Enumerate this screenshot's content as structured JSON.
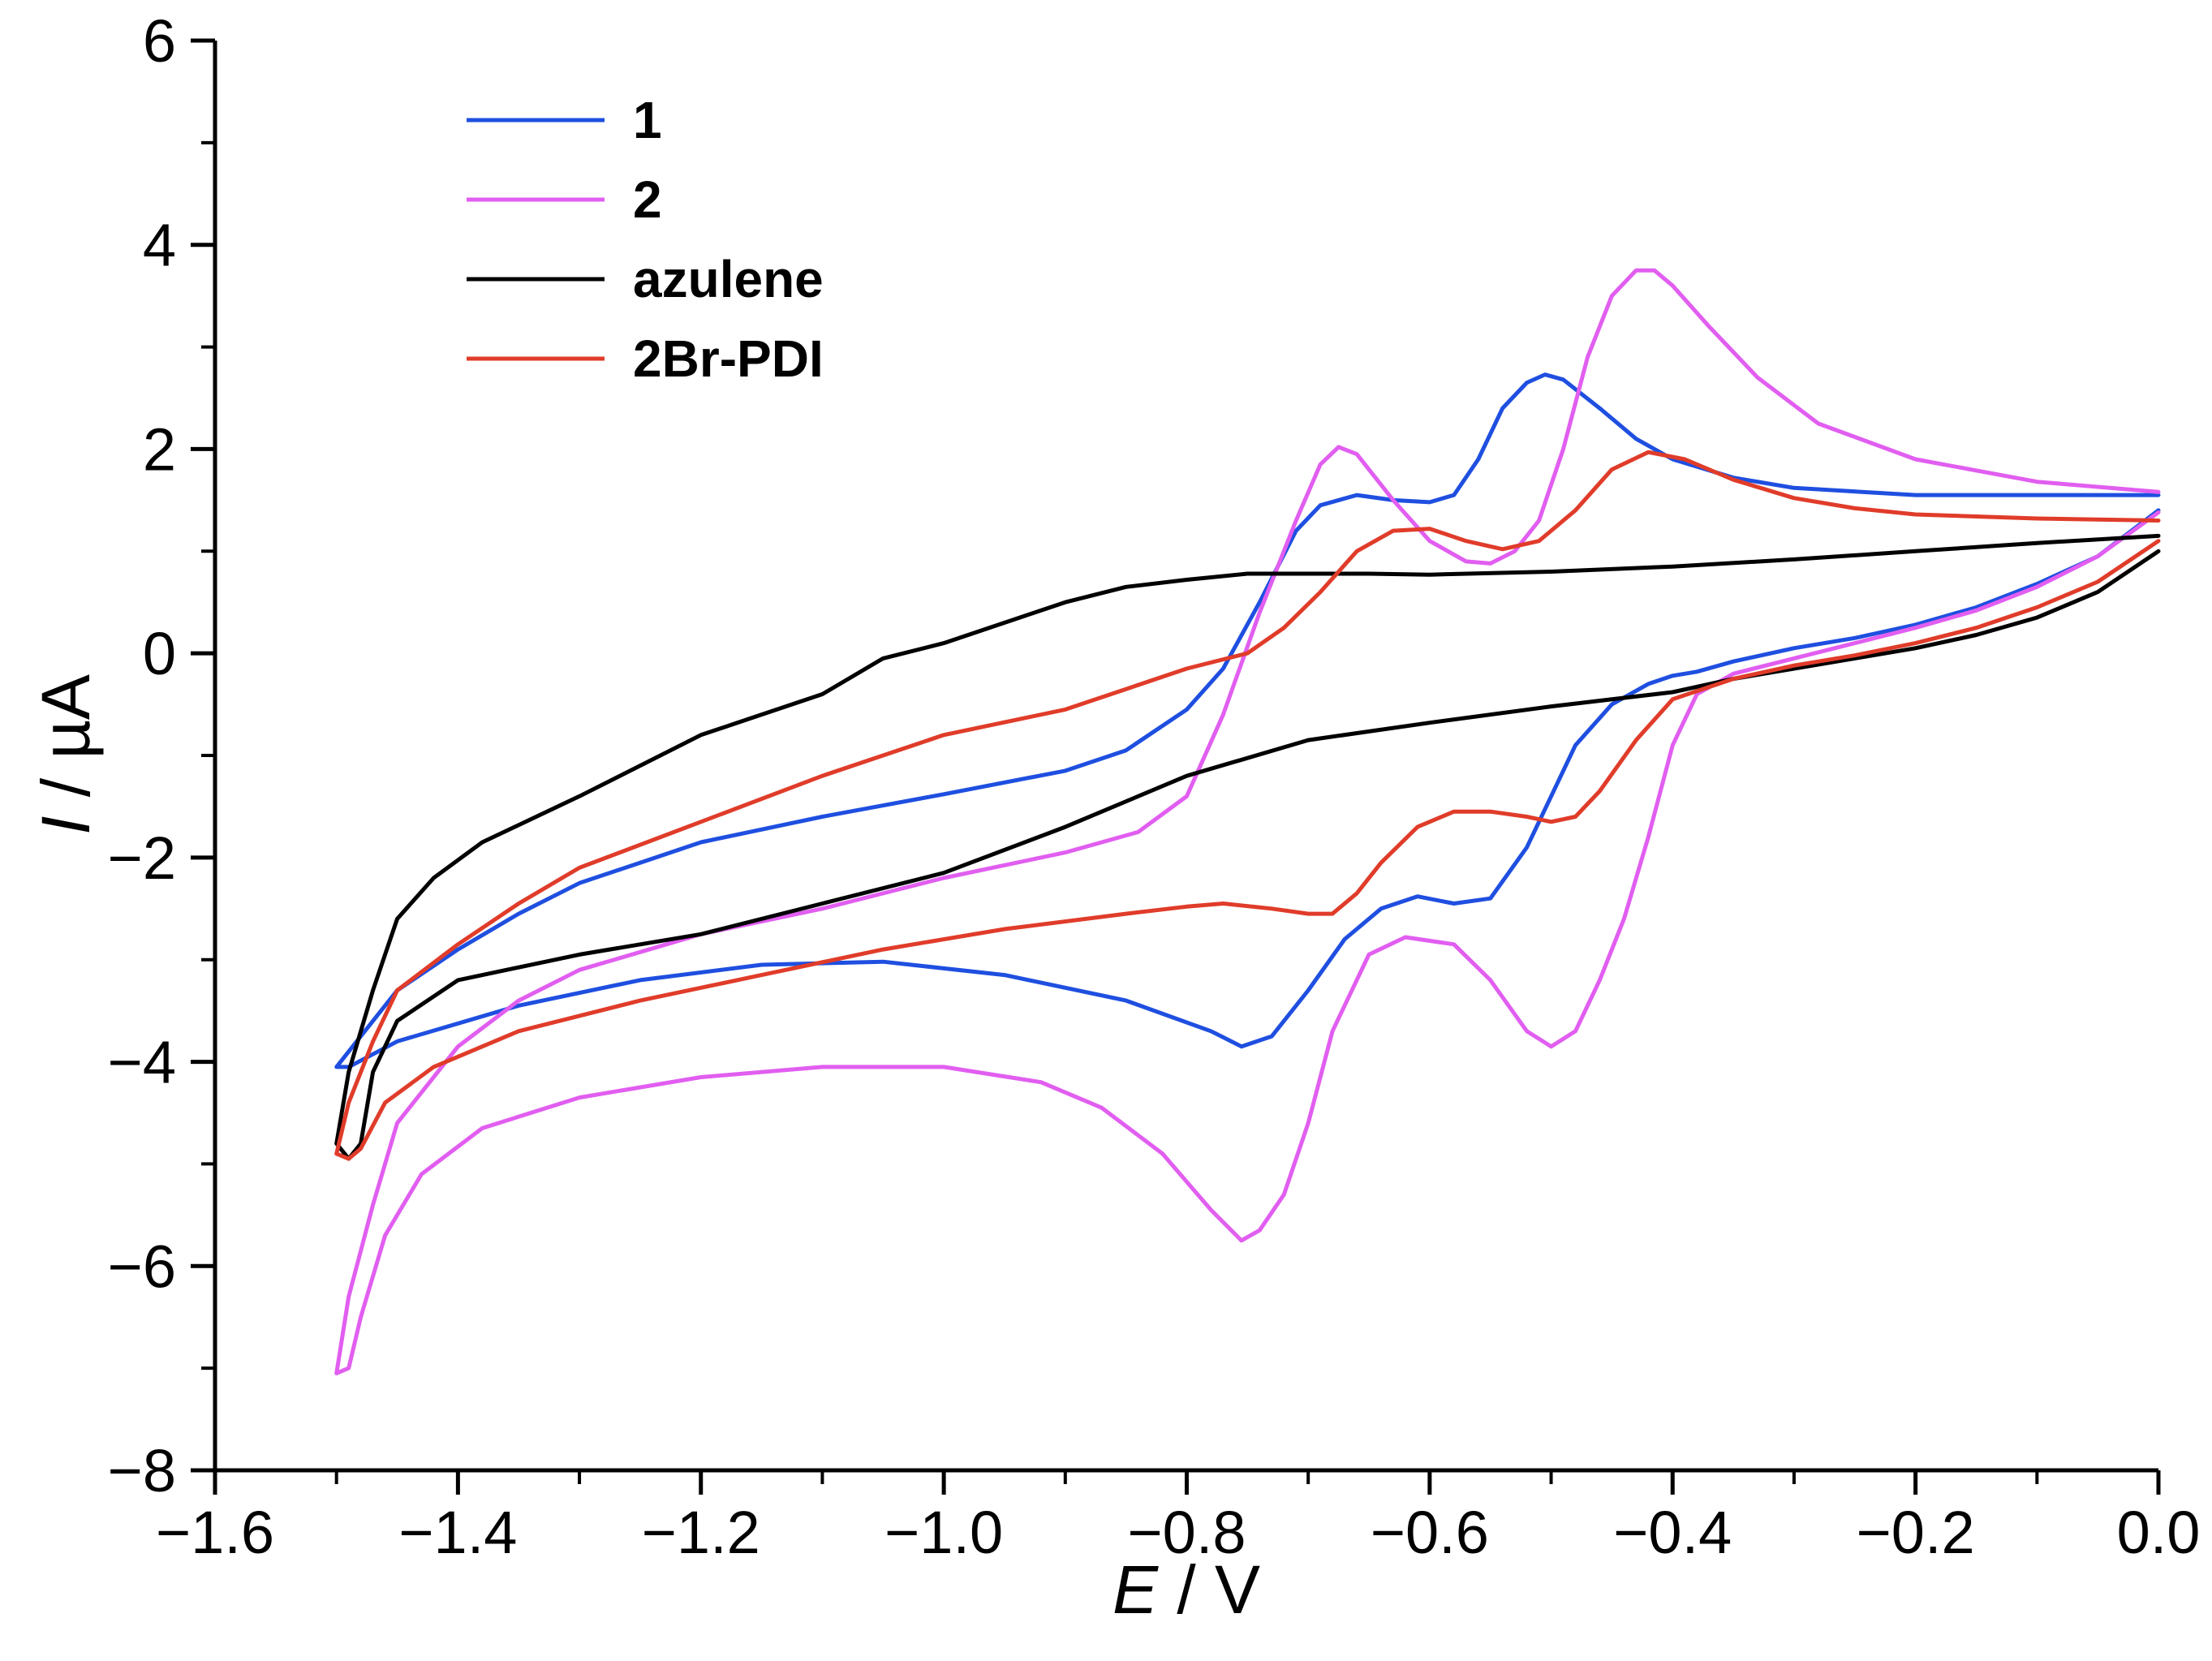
{
  "chart_data": {
    "type": "line",
    "title": "",
    "xlabel": {
      "symbol": "E",
      "unit": " / V"
    },
    "ylabel": {
      "symbol": "I",
      "unit": " / µA"
    },
    "xlim": [
      -1.6,
      0.0
    ],
    "ylim": [
      -8,
      6
    ],
    "x_major_ticks": [
      -1.6,
      -1.4,
      -1.2,
      -1.0,
      -0.8,
      -0.6,
      -0.4,
      -0.2,
      0.0
    ],
    "x_tick_labels": [
      "−1.6",
      "−1.4",
      "−1.2",
      "−1.0",
      "−0.8",
      "−0.6",
      "−0.4",
      "−0.2",
      "0.0"
    ],
    "y_major_ticks": [
      -8,
      -6,
      -4,
      -2,
      0,
      2,
      4,
      6
    ],
    "y_tick_labels": [
      "−8",
      "−6",
      "−4",
      "−2",
      "0",
      "2",
      "4",
      "6"
    ],
    "x_minor_step": 0.1,
    "y_minor_step": 1,
    "grid": false,
    "legend_position": "top-left",
    "series": [
      {
        "name": "1",
        "color": "#1f4fe0",
        "points": [
          [
            0.0,
            1.4
          ],
          [
            -0.05,
            0.95
          ],
          [
            -0.1,
            0.68
          ],
          [
            -0.15,
            0.45
          ],
          [
            -0.2,
            0.28
          ],
          [
            -0.25,
            0.15
          ],
          [
            -0.3,
            0.05
          ],
          [
            -0.35,
            -0.08
          ],
          [
            -0.38,
            -0.18
          ],
          [
            -0.4,
            -0.22
          ],
          [
            -0.42,
            -0.3
          ],
          [
            -0.45,
            -0.5
          ],
          [
            -0.48,
            -0.9
          ],
          [
            -0.5,
            -1.4
          ],
          [
            -0.52,
            -1.9
          ],
          [
            -0.55,
            -2.4
          ],
          [
            -0.58,
            -2.45
          ],
          [
            -0.61,
            -2.38
          ],
          [
            -0.64,
            -2.5
          ],
          [
            -0.67,
            -2.8
          ],
          [
            -0.7,
            -3.3
          ],
          [
            -0.73,
            -3.75
          ],
          [
            -0.755,
            -3.85
          ],
          [
            -0.78,
            -3.7
          ],
          [
            -0.85,
            -3.4
          ],
          [
            -0.95,
            -3.15
          ],
          [
            -1.05,
            -3.02
          ],
          [
            -1.15,
            -3.05
          ],
          [
            -1.25,
            -3.2
          ],
          [
            -1.35,
            -3.45
          ],
          [
            -1.45,
            -3.8
          ],
          [
            -1.49,
            -4.05
          ],
          [
            -1.5,
            -4.05
          ],
          [
            -1.48,
            -3.75
          ],
          [
            -1.45,
            -3.3
          ],
          [
            -1.4,
            -2.9
          ],
          [
            -1.35,
            -2.55
          ],
          [
            -1.3,
            -2.25
          ],
          [
            -1.25,
            -2.05
          ],
          [
            -1.2,
            -1.85
          ],
          [
            -1.1,
            -1.6
          ],
          [
            -1.0,
            -1.38
          ],
          [
            -0.9,
            -1.15
          ],
          [
            -0.85,
            -0.95
          ],
          [
            -0.8,
            -0.55
          ],
          [
            -0.77,
            -0.15
          ],
          [
            -0.74,
            0.5
          ],
          [
            -0.71,
            1.2
          ],
          [
            -0.69,
            1.45
          ],
          [
            -0.66,
            1.55
          ],
          [
            -0.63,
            1.5
          ],
          [
            -0.6,
            1.48
          ],
          [
            -0.58,
            1.55
          ],
          [
            -0.56,
            1.9
          ],
          [
            -0.54,
            2.4
          ],
          [
            -0.52,
            2.65
          ],
          [
            -0.505,
            2.73
          ],
          [
            -0.49,
            2.68
          ],
          [
            -0.46,
            2.4
          ],
          [
            -0.43,
            2.1
          ],
          [
            -0.4,
            1.9
          ],
          [
            -0.35,
            1.72
          ],
          [
            -0.3,
            1.62
          ],
          [
            -0.2,
            1.55
          ],
          [
            -0.1,
            1.55
          ],
          [
            0.0,
            1.55
          ]
        ]
      },
      {
        "name": "2",
        "color": "#e15ef0",
        "points": [
          [
            0.0,
            1.38
          ],
          [
            -0.05,
            0.95
          ],
          [
            -0.1,
            0.65
          ],
          [
            -0.15,
            0.42
          ],
          [
            -0.2,
            0.25
          ],
          [
            -0.25,
            0.1
          ],
          [
            -0.3,
            -0.05
          ],
          [
            -0.35,
            -0.2
          ],
          [
            -0.38,
            -0.4
          ],
          [
            -0.4,
            -0.9
          ],
          [
            -0.42,
            -1.8
          ],
          [
            -0.44,
            -2.6
          ],
          [
            -0.46,
            -3.2
          ],
          [
            -0.48,
            -3.7
          ],
          [
            -0.5,
            -3.85
          ],
          [
            -0.52,
            -3.7
          ],
          [
            -0.55,
            -3.2
          ],
          [
            -0.58,
            -2.85
          ],
          [
            -0.62,
            -2.78
          ],
          [
            -0.65,
            -2.95
          ],
          [
            -0.68,
            -3.7
          ],
          [
            -0.7,
            -4.6
          ],
          [
            -0.72,
            -5.3
          ],
          [
            -0.74,
            -5.65
          ],
          [
            -0.755,
            -5.75
          ],
          [
            -0.78,
            -5.45
          ],
          [
            -0.82,
            -4.9
          ],
          [
            -0.87,
            -4.45
          ],
          [
            -0.92,
            -4.2
          ],
          [
            -1.0,
            -4.05
          ],
          [
            -1.1,
            -4.05
          ],
          [
            -1.2,
            -4.15
          ],
          [
            -1.3,
            -4.35
          ],
          [
            -1.38,
            -4.65
          ],
          [
            -1.43,
            -5.1
          ],
          [
            -1.46,
            -5.7
          ],
          [
            -1.48,
            -6.5
          ],
          [
            -1.49,
            -7.0
          ],
          [
            -1.5,
            -7.05
          ],
          [
            -1.49,
            -6.3
          ],
          [
            -1.47,
            -5.4
          ],
          [
            -1.45,
            -4.6
          ],
          [
            -1.4,
            -3.85
          ],
          [
            -1.35,
            -3.4
          ],
          [
            -1.3,
            -3.1
          ],
          [
            -1.2,
            -2.75
          ],
          [
            -1.1,
            -2.5
          ],
          [
            -1.0,
            -2.2
          ],
          [
            -0.9,
            -1.95
          ],
          [
            -0.84,
            -1.75
          ],
          [
            -0.8,
            -1.4
          ],
          [
            -0.77,
            -0.6
          ],
          [
            -0.74,
            0.4
          ],
          [
            -0.71,
            1.3
          ],
          [
            -0.69,
            1.85
          ],
          [
            -0.675,
            2.02
          ],
          [
            -0.66,
            1.95
          ],
          [
            -0.63,
            1.5
          ],
          [
            -0.6,
            1.1
          ],
          [
            -0.57,
            0.9
          ],
          [
            -0.55,
            0.88
          ],
          [
            -0.53,
            1.0
          ],
          [
            -0.51,
            1.3
          ],
          [
            -0.49,
            2.0
          ],
          [
            -0.47,
            2.9
          ],
          [
            -0.45,
            3.5
          ],
          [
            -0.43,
            3.75
          ],
          [
            -0.415,
            3.75
          ],
          [
            -0.4,
            3.6
          ],
          [
            -0.37,
            3.2
          ],
          [
            -0.33,
            2.7
          ],
          [
            -0.28,
            2.25
          ],
          [
            -0.2,
            1.9
          ],
          [
            -0.1,
            1.68
          ],
          [
            0.0,
            1.58
          ]
        ]
      },
      {
        "name": "azulene",
        "color": "#000000",
        "points": [
          [
            0.0,
            1.0
          ],
          [
            -0.05,
            0.6
          ],
          [
            -0.1,
            0.35
          ],
          [
            -0.15,
            0.18
          ],
          [
            -0.2,
            0.05
          ],
          [
            -0.25,
            -0.05
          ],
          [
            -0.3,
            -0.15
          ],
          [
            -0.35,
            -0.25
          ],
          [
            -0.4,
            -0.38
          ],
          [
            -0.5,
            -0.52
          ],
          [
            -0.6,
            -0.68
          ],
          [
            -0.7,
            -0.85
          ],
          [
            -0.8,
            -1.2
          ],
          [
            -0.9,
            -1.7
          ],
          [
            -1.0,
            -2.15
          ],
          [
            -1.1,
            -2.45
          ],
          [
            -1.2,
            -2.75
          ],
          [
            -1.3,
            -2.95
          ],
          [
            -1.4,
            -3.2
          ],
          [
            -1.45,
            -3.6
          ],
          [
            -1.47,
            -4.1
          ],
          [
            -1.48,
            -4.8
          ],
          [
            -1.49,
            -4.95
          ],
          [
            -1.5,
            -4.8
          ],
          [
            -1.49,
            -4.1
          ],
          [
            -1.47,
            -3.3
          ],
          [
            -1.45,
            -2.6
          ],
          [
            -1.42,
            -2.2
          ],
          [
            -1.38,
            -1.85
          ],
          [
            -1.3,
            -1.4
          ],
          [
            -1.2,
            -0.8
          ],
          [
            -1.1,
            -0.4
          ],
          [
            -1.05,
            -0.05
          ],
          [
            -1.0,
            0.1
          ],
          [
            -0.95,
            0.3
          ],
          [
            -0.9,
            0.5
          ],
          [
            -0.85,
            0.65
          ],
          [
            -0.8,
            0.72
          ],
          [
            -0.75,
            0.78
          ],
          [
            -0.7,
            0.78
          ],
          [
            -0.65,
            0.78
          ],
          [
            -0.6,
            0.77
          ],
          [
            -0.5,
            0.8
          ],
          [
            -0.4,
            0.85
          ],
          [
            -0.3,
            0.92
          ],
          [
            -0.2,
            1.0
          ],
          [
            -0.1,
            1.08
          ],
          [
            0.0,
            1.15
          ]
        ]
      },
      {
        "name": "2Br-PDI",
        "color": "#e03c2a",
        "points": [
          [
            0.0,
            1.1
          ],
          [
            -0.05,
            0.7
          ],
          [
            -0.1,
            0.45
          ],
          [
            -0.15,
            0.25
          ],
          [
            -0.2,
            0.1
          ],
          [
            -0.25,
            -0.02
          ],
          [
            -0.3,
            -0.12
          ],
          [
            -0.35,
            -0.25
          ],
          [
            -0.4,
            -0.45
          ],
          [
            -0.43,
            -0.85
          ],
          [
            -0.46,
            -1.35
          ],
          [
            -0.48,
            -1.6
          ],
          [
            -0.5,
            -1.65
          ],
          [
            -0.52,
            -1.6
          ],
          [
            -0.55,
            -1.55
          ],
          [
            -0.58,
            -1.55
          ],
          [
            -0.61,
            -1.7
          ],
          [
            -0.64,
            -2.05
          ],
          [
            -0.66,
            -2.35
          ],
          [
            -0.68,
            -2.55
          ],
          [
            -0.7,
            -2.55
          ],
          [
            -0.73,
            -2.5
          ],
          [
            -0.77,
            -2.45
          ],
          [
            -0.8,
            -2.48
          ],
          [
            -0.85,
            -2.55
          ],
          [
            -0.95,
            -2.7
          ],
          [
            -1.05,
            -2.9
          ],
          [
            -1.15,
            -3.15
          ],
          [
            -1.25,
            -3.4
          ],
          [
            -1.35,
            -3.7
          ],
          [
            -1.42,
            -4.05
          ],
          [
            -1.46,
            -4.4
          ],
          [
            -1.48,
            -4.85
          ],
          [
            -1.49,
            -4.95
          ],
          [
            -1.5,
            -4.9
          ],
          [
            -1.49,
            -4.4
          ],
          [
            -1.47,
            -3.8
          ],
          [
            -1.45,
            -3.3
          ],
          [
            -1.4,
            -2.85
          ],
          [
            -1.35,
            -2.45
          ],
          [
            -1.3,
            -2.1
          ],
          [
            -1.2,
            -1.65
          ],
          [
            -1.1,
            -1.2
          ],
          [
            -1.0,
            -0.8
          ],
          [
            -0.9,
            -0.55
          ],
          [
            -0.85,
            -0.35
          ],
          [
            -0.8,
            -0.15
          ],
          [
            -0.75,
            0.0
          ],
          [
            -0.72,
            0.25
          ],
          [
            -0.69,
            0.6
          ],
          [
            -0.66,
            1.0
          ],
          [
            -0.63,
            1.2
          ],
          [
            -0.6,
            1.22
          ],
          [
            -0.57,
            1.1
          ],
          [
            -0.54,
            1.02
          ],
          [
            -0.51,
            1.1
          ],
          [
            -0.48,
            1.4
          ],
          [
            -0.45,
            1.8
          ],
          [
            -0.42,
            1.97
          ],
          [
            -0.39,
            1.9
          ],
          [
            -0.35,
            1.7
          ],
          [
            -0.3,
            1.52
          ],
          [
            -0.25,
            1.42
          ],
          [
            -0.2,
            1.36
          ],
          [
            -0.1,
            1.32
          ],
          [
            0.0,
            1.3
          ]
        ]
      }
    ]
  }
}
